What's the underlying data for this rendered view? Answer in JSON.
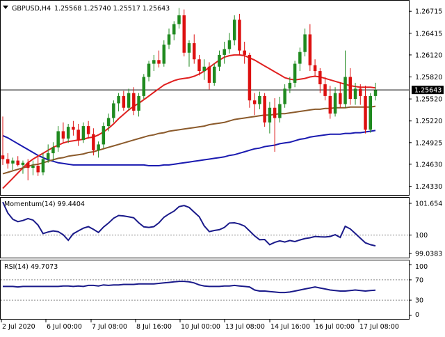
{
  "header": {
    "symbol": "GBPUSD,H4",
    "ohlc": "1.25568 1.25740 1.25517 1.25643"
  },
  "colors": {
    "bull": "#1f8a1f",
    "bear": "#dd1010",
    "ma_fast": "#e02020",
    "ma_slow": "#8b5a2b",
    "ma_long": "#1a1ab0",
    "osc": "#1a1a8a",
    "price_tag_bg": "#000000",
    "price_tag_fg": "#ffffff"
  },
  "x_labels": [
    "2 Jul 2020",
    "6 Jul 00:00",
    "7 Jul 08:00",
    "8 Jul 16:00",
    "10 Jul 00:00",
    "13 Jul 08:00",
    "14 Jul 16:00",
    "16 Jul 00:00",
    "17 Jul 08:00"
  ],
  "chart_data": [
    {
      "type": "candlestick",
      "title": "GBPUSD,H4",
      "ylim": [
        1.2423,
        1.2685
      ],
      "y_ticks": [
        "1.26715",
        "1.26415",
        "1.26120",
        "1.25820",
        "1.25520",
        "1.25220",
        "1.24925",
        "1.24630",
        "1.24330"
      ],
      "current_price": "1.25643",
      "candles": [
        [
          1.2475,
          1.2528,
          1.2462,
          1.247
        ],
        [
          1.247,
          1.2478,
          1.2457,
          1.2464
        ],
        [
          1.2464,
          1.2472,
          1.2455,
          1.2468
        ],
        [
          1.2468,
          1.2474,
          1.246,
          1.2462
        ],
        [
          1.2462,
          1.2468,
          1.245,
          1.2465
        ],
        [
          1.2465,
          1.247,
          1.2441,
          1.2458
        ],
        [
          1.2458,
          1.2468,
          1.2448,
          1.2461
        ],
        [
          1.2461,
          1.2473,
          1.2447,
          1.2452
        ],
        [
          1.2452,
          1.2478,
          1.2448,
          1.247
        ],
        [
          1.247,
          1.249,
          1.2465,
          1.2478
        ],
        [
          1.2478,
          1.2493,
          1.2468,
          1.2486
        ],
        [
          1.2486,
          1.2515,
          1.248,
          1.2508
        ],
        [
          1.2508,
          1.252,
          1.2492,
          1.2498
        ],
        [
          1.2498,
          1.2518,
          1.2492,
          1.2514
        ],
        [
          1.2514,
          1.2522,
          1.2502,
          1.251
        ],
        [
          1.251,
          1.2518,
          1.2488,
          1.2496
        ],
        [
          1.2496,
          1.252,
          1.2492,
          1.2515
        ],
        [
          1.2515,
          1.2522,
          1.2498,
          1.2504
        ],
        [
          1.2504,
          1.2512,
          1.2475,
          1.2482
        ],
        [
          1.2482,
          1.2494,
          1.2472,
          1.249
        ],
        [
          1.249,
          1.252,
          1.2485,
          1.2515
        ],
        [
          1.2515,
          1.2532,
          1.2508,
          1.2526
        ],
        [
          1.2526,
          1.255,
          1.252,
          1.2546
        ],
        [
          1.2546,
          1.256,
          1.2535,
          1.2556
        ],
        [
          1.2556,
          1.2563,
          1.2536,
          1.254
        ],
        [
          1.254,
          1.2566,
          1.2536,
          1.256
        ],
        [
          1.256,
          1.2568,
          1.253,
          1.2536
        ],
        [
          1.2536,
          1.256,
          1.2528,
          1.2556
        ],
        [
          1.2556,
          1.2586,
          1.2552,
          1.2582
        ],
        [
          1.2582,
          1.2604,
          1.2576,
          1.26
        ],
        [
          1.26,
          1.2612,
          1.259,
          1.2605
        ],
        [
          1.2605,
          1.2618,
          1.2595,
          1.26
        ],
        [
          1.26,
          1.2632,
          1.2596,
          1.2626
        ],
        [
          1.2626,
          1.2648,
          1.262,
          1.264
        ],
        [
          1.264,
          1.2658,
          1.2632,
          1.2654
        ],
        [
          1.2654,
          1.2676,
          1.2648,
          1.2666
        ],
        [
          1.2666,
          1.2674,
          1.261,
          1.2615
        ],
        [
          1.2615,
          1.2632,
          1.2596,
          1.2628
        ],
        [
          1.2628,
          1.264,
          1.26,
          1.2606
        ],
        [
          1.2606,
          1.2612,
          1.2584,
          1.259
        ],
        [
          1.259,
          1.2606,
          1.2578,
          1.2596
        ],
        [
          1.2596,
          1.2602,
          1.2565,
          1.2574
        ],
        [
          1.2574,
          1.26,
          1.257,
          1.2596
        ],
        [
          1.2596,
          1.2618,
          1.259,
          1.2612
        ],
        [
          1.2612,
          1.263,
          1.26,
          1.262
        ],
        [
          1.262,
          1.2642,
          1.2614,
          1.2632
        ],
        [
          1.2632,
          1.2666,
          1.2625,
          1.266
        ],
        [
          1.266,
          1.2668,
          1.2612,
          1.2618
        ],
        [
          1.2618,
          1.263,
          1.26,
          1.2612
        ],
        [
          1.2612,
          1.2615,
          1.254,
          1.255
        ],
        [
          1.255,
          1.256,
          1.253,
          1.2545
        ],
        [
          1.2545,
          1.2562,
          1.2538,
          1.2556
        ],
        [
          1.2556,
          1.256,
          1.2514,
          1.252
        ],
        [
          1.252,
          1.2548,
          1.2505,
          1.254
        ],
        [
          1.254,
          1.2553,
          1.248,
          1.2526
        ],
        [
          1.2526,
          1.2555,
          1.252,
          1.2545
        ],
        [
          1.2545,
          1.2572,
          1.254,
          1.2566
        ],
        [
          1.2566,
          1.2582,
          1.256,
          1.2574
        ],
        [
          1.2574,
          1.2604,
          1.2568,
          1.26
        ],
        [
          1.26,
          1.2622,
          1.259,
          1.2616
        ],
        [
          1.2616,
          1.2648,
          1.261,
          1.264
        ],
        [
          1.264,
          1.2654,
          1.259,
          1.2598
        ],
        [
          1.2598,
          1.2606,
          1.2582,
          1.259
        ],
        [
          1.259,
          1.2594,
          1.256,
          1.2572
        ],
        [
          1.2572,
          1.2582,
          1.255,
          1.2556
        ],
        [
          1.2556,
          1.257,
          1.2525,
          1.2532
        ],
        [
          1.2532,
          1.2568,
          1.2528,
          1.256
        ],
        [
          1.256,
          1.2575,
          1.254,
          1.2545
        ],
        [
          1.2545,
          1.2618,
          1.254,
          1.2582
        ],
        [
          1.2582,
          1.2594,
          1.2544,
          1.2552
        ],
        [
          1.2552,
          1.2574,
          1.2544,
          1.2566
        ],
        [
          1.2566,
          1.2572,
          1.2544,
          1.2556
        ],
        [
          1.2556,
          1.257,
          1.2505,
          1.251
        ],
        [
          1.251,
          1.256,
          1.2506,
          1.2556
        ],
        [
          1.2556,
          1.2574,
          1.255,
          1.2564
        ]
      ],
      "ma_fast": [
        1.243,
        1.2437,
        1.2444,
        1.2451,
        1.2458,
        1.2465,
        1.247,
        1.2474,
        1.2478,
        1.2482,
        1.2486,
        1.2489,
        1.2492,
        1.2494,
        1.2495,
        1.2496,
        1.2497,
        1.2499,
        1.25,
        1.2503,
        1.2507,
        1.2512,
        1.2518,
        1.2525,
        1.2531,
        1.2537,
        1.2542,
        1.2546,
        1.2551,
        1.2556,
        1.2561,
        1.2566,
        1.2571,
        1.2574,
        1.2577,
        1.2579,
        1.258,
        1.2581,
        1.2583,
        1.2586,
        1.259,
        1.2595,
        1.26,
        1.2605,
        1.2609,
        1.2611,
        1.2612,
        1.2612,
        1.2611,
        1.2608,
        1.2605,
        1.2601,
        1.2597,
        1.2593,
        1.2589,
        1.2585,
        1.2581,
        1.2579,
        1.2578,
        1.2579,
        1.258,
        1.2582,
        1.2583,
        1.2582,
        1.258,
        1.2578,
        1.2576,
        1.2574,
        1.2572,
        1.257,
        1.2569,
        1.2568,
        1.2568,
        1.2568,
        1.2567
      ],
      "ma_slow": [
        1.245,
        1.2452,
        1.2454,
        1.2456,
        1.2458,
        1.246,
        1.2462,
        1.2463,
        1.2465,
        1.2467,
        1.2469,
        1.2471,
        1.2472,
        1.2474,
        1.2475,
        1.2476,
        1.2477,
        1.2479,
        1.248,
        1.2482,
        1.2484,
        1.2486,
        1.2488,
        1.249,
        1.2492,
        1.2494,
        1.2496,
        1.2498,
        1.25,
        1.2502,
        1.2503,
        1.2505,
        1.2506,
        1.2508,
        1.2509,
        1.251,
        1.2511,
        1.2512,
        1.2513,
        1.2514,
        1.2515,
        1.2517,
        1.2518,
        1.2519,
        1.252,
        1.2522,
        1.2524,
        1.2525,
        1.2526,
        1.2527,
        1.2528,
        1.2529,
        1.253,
        1.253,
        1.2531,
        1.2532,
        1.2532,
        1.2533,
        1.2534,
        1.2535,
        1.2536,
        1.2537,
        1.2538,
        1.2538,
        1.2539,
        1.2539,
        1.254,
        1.254,
        1.254,
        1.2541,
        1.2541,
        1.2541,
        1.2541,
        1.2541,
        1.2542
      ],
      "ma_long": [
        1.2502,
        1.2499,
        1.2495,
        1.2491,
        1.2487,
        1.2483,
        1.2479,
        1.2475,
        1.2472,
        1.2469,
        1.2467,
        1.2465,
        1.2464,
        1.2463,
        1.2462,
        1.2462,
        1.2462,
        1.2462,
        1.2462,
        1.2462,
        1.2462,
        1.2462,
        1.2462,
        1.2462,
        1.2462,
        1.2462,
        1.2462,
        1.2462,
        1.2462,
        1.2461,
        1.2461,
        1.2461,
        1.2462,
        1.2462,
        1.2463,
        1.2464,
        1.2465,
        1.2466,
        1.2467,
        1.2468,
        1.2469,
        1.247,
        1.2471,
        1.2472,
        1.2473,
        1.2475,
        1.2476,
        1.2478,
        1.248,
        1.2482,
        1.2484,
        1.2485,
        1.2487,
        1.2488,
        1.2489,
        1.2491,
        1.2492,
        1.2493,
        1.2495,
        1.2497,
        1.2498,
        1.25,
        1.2501,
        1.2502,
        1.2503,
        1.2504,
        1.2504,
        1.2504,
        1.2505,
        1.2505,
        1.2506,
        1.2506,
        1.2507,
        1.2508,
        1.2509
      ]
    },
    {
      "type": "line",
      "title": "Momentum(14) 99.4404",
      "ylim": [
        98.9,
        101.8
      ],
      "y_ticks": [
        "101.654",
        "100",
        "99.0383"
      ],
      "reference_level": 100,
      "values": [
        101.72,
        101.15,
        100.82,
        100.7,
        100.76,
        100.86,
        100.78,
        100.52,
        100.08,
        100.16,
        100.22,
        100.18,
        100.02,
        99.73,
        100.07,
        100.22,
        100.36,
        100.44,
        100.3,
        100.14,
        100.42,
        100.63,
        100.88,
        101.02,
        101.0,
        100.95,
        100.9,
        100.64,
        100.43,
        100.4,
        100.44,
        100.64,
        100.93,
        101.1,
        101.25,
        101.48,
        101.54,
        101.44,
        101.2,
        100.96,
        100.48,
        100.18,
        100.24,
        100.28,
        100.4,
        100.63,
        100.64,
        100.58,
        100.47,
        100.22,
        99.96,
        99.76,
        99.77,
        99.5,
        99.62,
        99.7,
        99.64,
        99.72,
        99.66,
        99.75,
        99.82,
        99.86,
        99.93,
        99.91,
        99.9,
        99.93,
        100.02,
        99.88,
        100.46,
        100.32,
        100.08,
        99.84,
        99.6,
        99.5,
        99.44
      ]
    },
    {
      "type": "line",
      "title": "RSI(14) 49.7073",
      "ylim": [
        0,
        100
      ],
      "y_ticks": [
        "100",
        "70",
        "30",
        "0"
      ],
      "levels": [
        70,
        30
      ],
      "values": [
        57,
        57,
        57,
        56,
        57,
        57,
        57,
        57,
        57,
        57,
        57,
        57,
        58,
        58,
        57,
        58,
        57,
        59,
        59,
        58,
        60,
        59,
        60,
        60,
        61,
        61,
        61,
        62,
        62,
        62,
        62,
        63,
        64,
        65,
        66,
        67,
        67,
        66,
        64,
        60,
        58,
        57,
        57,
        57,
        58,
        58,
        59,
        58,
        57,
        56,
        50,
        48,
        48,
        47,
        46,
        45,
        45,
        46,
        48,
        50,
        52,
        54,
        56,
        54,
        52,
        50,
        49,
        48,
        48,
        49,
        50,
        49,
        48,
        49,
        49.7
      ]
    }
  ]
}
